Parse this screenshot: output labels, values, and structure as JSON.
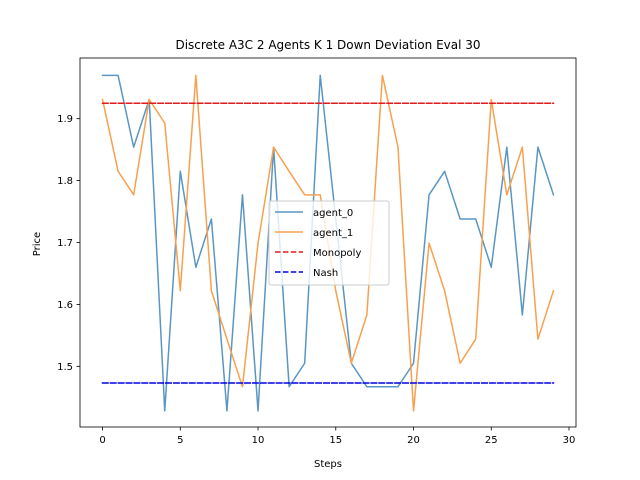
{
  "chart_data": {
    "type": "line",
    "title": "Discrete A3C 2 Agents K 1 Down Deviation Eval 30",
    "xlabel": "Steps",
    "ylabel": "Price",
    "xlim": [
      -1.45,
      30.45
    ],
    "ylim": [
      1.402,
      1.998
    ],
    "xticks": [
      0,
      5,
      10,
      15,
      20,
      25,
      30
    ],
    "yticks": [
      1.5,
      1.6,
      1.7,
      1.8,
      1.9
    ],
    "grid": false,
    "legend_position": "center",
    "x": [
      0,
      1,
      2,
      3,
      4,
      5,
      6,
      7,
      8,
      9,
      10,
      11,
      12,
      13,
      14,
      15,
      16,
      17,
      18,
      19,
      20,
      21,
      22,
      23,
      24,
      25,
      26,
      27,
      28,
      29
    ],
    "series": [
      {
        "name": "agent_0",
        "color": "#5a96c3",
        "style": "solid",
        "values": [
          1.97,
          1.97,
          1.854,
          1.931,
          1.428,
          1.815,
          1.66,
          1.738,
          1.428,
          1.777,
          1.428,
          1.854,
          1.467,
          1.505,
          1.97,
          1.738,
          1.505,
          1.467,
          1.467,
          1.467,
          1.505,
          1.777,
          1.815,
          1.738,
          1.738,
          1.66,
          1.854,
          1.583,
          1.854,
          1.777
        ]
      },
      {
        "name": "agent_1",
        "color": "#f8a04e",
        "style": "solid",
        "values": [
          1.931,
          1.815,
          1.777,
          1.931,
          1.893,
          1.622,
          1.97,
          1.622,
          1.544,
          1.467,
          1.699,
          1.854,
          1.815,
          1.777,
          1.777,
          1.622,
          1.505,
          1.583,
          1.97,
          1.854,
          1.428,
          1.699,
          1.622,
          1.505,
          1.544,
          1.931,
          1.777,
          1.854,
          1.544,
          1.622
        ]
      },
      {
        "name": "Monopoly",
        "color": "#e31a1c",
        "style": "dashed",
        "values": [
          1.925,
          1.925,
          1.925,
          1.925,
          1.925,
          1.925,
          1.925,
          1.925,
          1.925,
          1.925,
          1.925,
          1.925,
          1.925,
          1.925,
          1.925,
          1.925,
          1.925,
          1.925,
          1.925,
          1.925,
          1.925,
          1.925,
          1.925,
          1.925,
          1.925,
          1.925,
          1.925,
          1.925,
          1.925,
          1.925
        ]
      },
      {
        "name": "Nash",
        "color": "#0000e6",
        "style": "dashed",
        "values": [
          1.473,
          1.473,
          1.473,
          1.473,
          1.473,
          1.473,
          1.473,
          1.473,
          1.473,
          1.473,
          1.473,
          1.473,
          1.473,
          1.473,
          1.473,
          1.473,
          1.473,
          1.473,
          1.473,
          1.473,
          1.473,
          1.473,
          1.473,
          1.473,
          1.473,
          1.473,
          1.473,
          1.473,
          1.473,
          1.473
        ]
      }
    ]
  }
}
